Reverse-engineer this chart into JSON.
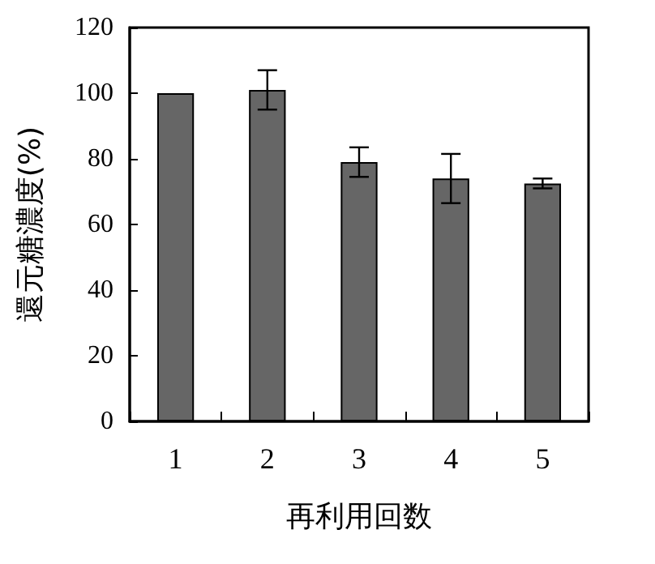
{
  "chart_data": {
    "type": "bar",
    "xlabel": "再利用回数",
    "ylabel": "還元糖濃度(%)",
    "categories": [
      "1",
      "2",
      "3",
      "4",
      "5"
    ],
    "series": [
      {
        "color": "#666666",
        "values": [
          100,
          101,
          79,
          74,
          72.5
        ],
        "errors": [
          null,
          6,
          4.5,
          7.5,
          1.5
        ]
      }
    ],
    "ylim": [
      0,
      120
    ],
    "yticks": [
      0,
      20,
      40,
      60,
      80,
      100,
      120
    ],
    "grid": false
  }
}
